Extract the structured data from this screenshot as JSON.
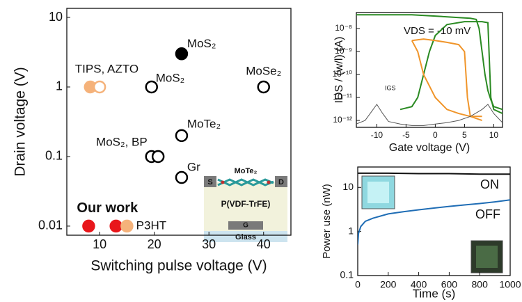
{
  "chart_data": [
    {
      "type": "scatter",
      "xlabel": "Switching pulse voltage (V)",
      "ylabel": "Drain voltage (V)",
      "xlim": [
        4,
        45
      ],
      "ylim": [
        0.0074,
        13.5
      ],
      "ylog": true,
      "xticks": [
        10,
        20,
        30,
        40
      ],
      "yticks": [
        0.01,
        0.1,
        1,
        10
      ],
      "series": [
        {
          "name": "MoS₂",
          "x": [
            25
          ],
          "values": [
            3
          ],
          "colors": [
            "#000000"
          ],
          "filled": [
            true
          ]
        },
        {
          "name": "TIPS, AZTO",
          "x": [
            8.3,
            10
          ],
          "values": [
            1,
            1
          ],
          "colors": [
            "#f5b27a",
            "#f5b27a"
          ],
          "filled": [
            true,
            false
          ]
        },
        {
          "name": "MoS₂",
          "x": [
            19.5
          ],
          "values": [
            1
          ],
          "colors": [
            "#000000"
          ],
          "filled": [
            false
          ]
        },
        {
          "name": "MoSe₂",
          "x": [
            40
          ],
          "values": [
            1
          ],
          "colors": [
            "#000000"
          ],
          "filled": [
            false
          ]
        },
        {
          "name": "MoTe₂",
          "x": [
            25
          ],
          "values": [
            0.2
          ],
          "colors": [
            "#000000"
          ],
          "filled": [
            false
          ]
        },
        {
          "name": "MoS₂, BP",
          "x": [
            19.5,
            20.7
          ],
          "values": [
            0.1,
            0.1
          ],
          "colors": [
            "#000000",
            "#000000"
          ],
          "filled": [
            false,
            false
          ]
        },
        {
          "name": "Gr",
          "x": [
            25
          ],
          "values": [
            0.05
          ],
          "colors": [
            "#000000"
          ],
          "filled": [
            false
          ]
        },
        {
          "name": "Our work",
          "x": [
            8
          ],
          "values": [
            0.01
          ],
          "colors": [
            "#e8161b"
          ],
          "filled": [
            true
          ]
        },
        {
          "name": "P3HT",
          "x": [
            13,
            15
          ],
          "values": [
            0.01,
            0.01
          ],
          "colors": [
            "#e8161b",
            "#f5b27a"
          ],
          "filled": [
            true,
            true
          ]
        }
      ]
    },
    {
      "type": "line",
      "xlabel": "Gate voltage (V)",
      "ylabel": "IDS / (w/l) (A)",
      "annotations": [
        "VDS = -10 mV"
      ],
      "xlim": [
        -13.5,
        11.5
      ],
      "ylim": [
        5e-13,
        5e-08
      ],
      "ylog": true,
      "xticks": [
        -10,
        -5,
        0,
        5,
        10
      ],
      "yticks": [
        {
          "value": 1e-12,
          "label": "10⁻¹²"
        },
        {
          "value": 1e-11,
          "label": "10⁻¹¹"
        },
        {
          "value": 1e-10,
          "label": "10⁻¹⁰"
        },
        {
          "value": 1e-09,
          "label": "10⁻⁹"
        },
        {
          "value": 1e-08,
          "label": "10⁻⁸"
        }
      ],
      "series": [
        {
          "color": "#2a8a22",
          "x": [
            -13.5,
            -8,
            -4,
            0,
            4,
            6,
            7,
            7.5,
            8,
            8.5,
            9,
            9.5,
            10,
            11.5
          ],
          "values": [
            4e-08,
            4e-08,
            4e-08,
            3.5e-08,
            3e-08,
            2.8e-08,
            2.5e-08,
            1e-08,
            1e-09,
            1e-10,
            2e-11,
            8e-12,
            4e-12,
            3e-12
          ]
        },
        {
          "color": "#2a8a22",
          "x": [
            -6,
            -4,
            -3,
            -2,
            -1,
            0,
            2,
            5,
            8,
            9,
            9.5,
            10,
            11.5
          ],
          "values": [
            3e-12,
            4e-12,
            1e-11,
            1e-10,
            1e-09,
            5e-09,
            1.5e-08,
            2e-08,
            2e-08,
            1.8e-08,
            1e-11,
            3e-12,
            2e-12
          ]
        },
        {
          "color": "#f0952a",
          "x": [
            -4,
            -2,
            0,
            2,
            4,
            5,
            5.5,
            6,
            8
          ],
          "values": [
            3e-09,
            3.5e-09,
            3e-09,
            2.5e-09,
            2e-09,
            1e-09,
            1e-11,
            1.5e-12,
            1e-12
          ]
        },
        {
          "color": "#f0952a",
          "x": [
            -4,
            -3,
            -2,
            0,
            2,
            4,
            6,
            8
          ],
          "values": [
            3e-09,
            1e-09,
            1e-10,
            1e-11,
            3e-12,
            2e-12,
            1.5e-12,
            1.5e-12
          ]
        },
        {
          "name": "IGS",
          "color": "#555555",
          "x": [
            -13.5,
            -12,
            -10,
            -9,
            -8,
            -6,
            -4,
            -2,
            0,
            2,
            4,
            6,
            8,
            9,
            10,
            11.5
          ],
          "values": [
            7e-13,
            1e-12,
            5e-12,
            2e-12,
            9e-13,
            7e-13,
            6e-13,
            6e-13,
            7e-13,
            8e-13,
            1e-12,
            1.5e-12,
            3e-12,
            5e-12,
            2e-12,
            8e-13
          ]
        }
      ]
    },
    {
      "type": "line",
      "xlabel": "Time (s)",
      "ylabel": "Power use (nW)",
      "xlim": [
        0,
        1000
      ],
      "ylim": [
        0.1,
        29
      ],
      "ylog": true,
      "xticks": [
        0,
        200,
        400,
        600,
        800,
        1000
      ],
      "yticks": [
        0.1,
        1,
        10
      ],
      "series": [
        {
          "name": "ON",
          "color": "#111111",
          "x": [
            0,
            200,
            400,
            600,
            800,
            1000
          ],
          "values": [
            21,
            21,
            20.5,
            20.5,
            20,
            20
          ]
        },
        {
          "name": "OFF",
          "color": "#1f6db5",
          "x": [
            0,
            5,
            20,
            50,
            100,
            200,
            300,
            400,
            500,
            600,
            700,
            800,
            900,
            1000
          ],
          "values": [
            0.5,
            0.9,
            1.3,
            1.7,
            2.0,
            2.5,
            2.8,
            3.1,
            3.4,
            3.7,
            4.0,
            4.3,
            4.7,
            5.2
          ]
        }
      ]
    }
  ],
  "inset": {
    "source": "S",
    "drain": "D",
    "channel": "MoTe₂",
    "dielectric": "P(VDF-TrFE)",
    "gate": "G",
    "substrate": "Glass"
  }
}
